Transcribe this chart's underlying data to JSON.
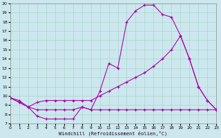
{
  "xlabel": "Windchill (Refroidissement éolien,°C)",
  "bg_color": "#cce8ee",
  "grid_color": "#aad4cc",
  "line_color": "#aa00aa",
  "xlim": [
    0,
    23
  ],
  "ylim": [
    7,
    20
  ],
  "xticks": [
    0,
    1,
    2,
    3,
    4,
    5,
    6,
    7,
    8,
    9,
    10,
    11,
    12,
    13,
    14,
    15,
    16,
    17,
    18,
    19,
    20,
    21,
    22,
    23
  ],
  "yticks": [
    7,
    8,
    9,
    10,
    11,
    12,
    13,
    14,
    15,
    16,
    17,
    18,
    19,
    20
  ],
  "curve1_x": [
    0,
    1,
    2,
    3,
    4,
    5,
    6,
    7,
    8,
    9,
    10,
    11,
    12,
    13,
    14,
    15,
    16,
    17,
    18,
    19,
    20,
    21,
    22,
    23
  ],
  "curve1_y": [
    9.8,
    9.5,
    8.8,
    8.5,
    8.5,
    8.5,
    8.5,
    8.5,
    8.8,
    8.5,
    10.5,
    13.5,
    13.0,
    18.0,
    19.2,
    19.8,
    19.8,
    18.8,
    18.5,
    16.5,
    14.0,
    11.0,
    9.5,
    8.5
  ],
  "curve2_x": [
    0,
    1,
    2,
    3,
    4,
    5,
    6,
    7,
    8,
    9,
    10,
    11,
    12,
    13,
    14,
    15,
    16,
    17,
    18,
    19,
    20,
    21,
    22,
    23
  ],
  "curve2_y": [
    9.8,
    9.3,
    8.8,
    9.3,
    9.5,
    9.5,
    9.5,
    9.5,
    9.5,
    9.5,
    10.0,
    10.5,
    11.0,
    11.5,
    12.0,
    12.5,
    13.2,
    14.0,
    15.0,
    16.5,
    14.0,
    11.0,
    9.5,
    8.5
  ],
  "curve3_x": [
    0,
    1,
    2,
    3,
    4,
    5,
    6,
    7,
    8,
    9,
    10,
    11,
    12,
    13,
    14,
    15,
    16,
    17,
    18,
    19,
    20,
    21,
    22,
    23
  ],
  "curve3_y": [
    9.8,
    9.3,
    8.8,
    7.8,
    7.5,
    7.5,
    7.5,
    7.5,
    8.8,
    8.5,
    8.5,
    8.5,
    8.5,
    8.5,
    8.5,
    8.5,
    8.5,
    8.5,
    8.5,
    8.5,
    8.5,
    8.5,
    8.5,
    8.5
  ]
}
